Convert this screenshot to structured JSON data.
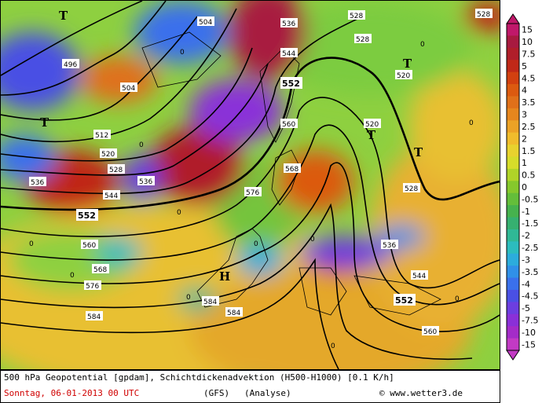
{
  "map": {
    "contours": [
      {
        "label": "496"
      },
      {
        "label": "504"
      },
      {
        "label": "512"
      },
      {
        "label": "520"
      },
      {
        "label": "528"
      },
      {
        "label": "536"
      },
      {
        "label": "544"
      },
      {
        "label": "552"
      },
      {
        "label": "560"
      },
      {
        "label": "568"
      },
      {
        "label": "576"
      },
      {
        "label": "584"
      }
    ],
    "pressure_centers": [
      "T",
      "T",
      "T",
      "T",
      "T",
      "H"
    ],
    "advection_zero_label": "0"
  },
  "legend": {
    "levels": [
      "15",
      "10",
      "7.5",
      "5",
      "4.5",
      "4",
      "3.5",
      "3",
      "2.5",
      "2",
      "1.5",
      "1",
      "0.5",
      "0",
      "-0.5",
      "-1",
      "-1.5",
      "-2",
      "-2.5",
      "-3",
      "-3.5",
      "-4",
      "-4.5",
      "-5",
      "-7.5",
      "-10",
      "-15"
    ],
    "colors": [
      "#c0186a",
      "#a81a40",
      "#b01e2a",
      "#c02818",
      "#d24010",
      "#dc5a10",
      "#e0701a",
      "#e6861e",
      "#eca226",
      "#f0bc2c",
      "#e8d22e",
      "#d6dc2a",
      "#b0d428",
      "#86c82c",
      "#64be3a",
      "#46b24e",
      "#36b070",
      "#30b896",
      "#2cbcbe",
      "#2cacdc",
      "#3090e8",
      "#3a70ec",
      "#4a50e4",
      "#6c3ee0",
      "#8a30d8",
      "#a42cc8",
      "#c23ac4"
    ]
  },
  "caption": {
    "line1": "500 hPa Geopotential [gpdam], Schichtdickenadvektion (H500-H1000) [0.1 K/h]",
    "date": "Sonntag, 06-01-2013  00 UTC",
    "model": "(GFS)",
    "analysis": "(Analyse)",
    "credit": "© www.wetter3.de"
  }
}
